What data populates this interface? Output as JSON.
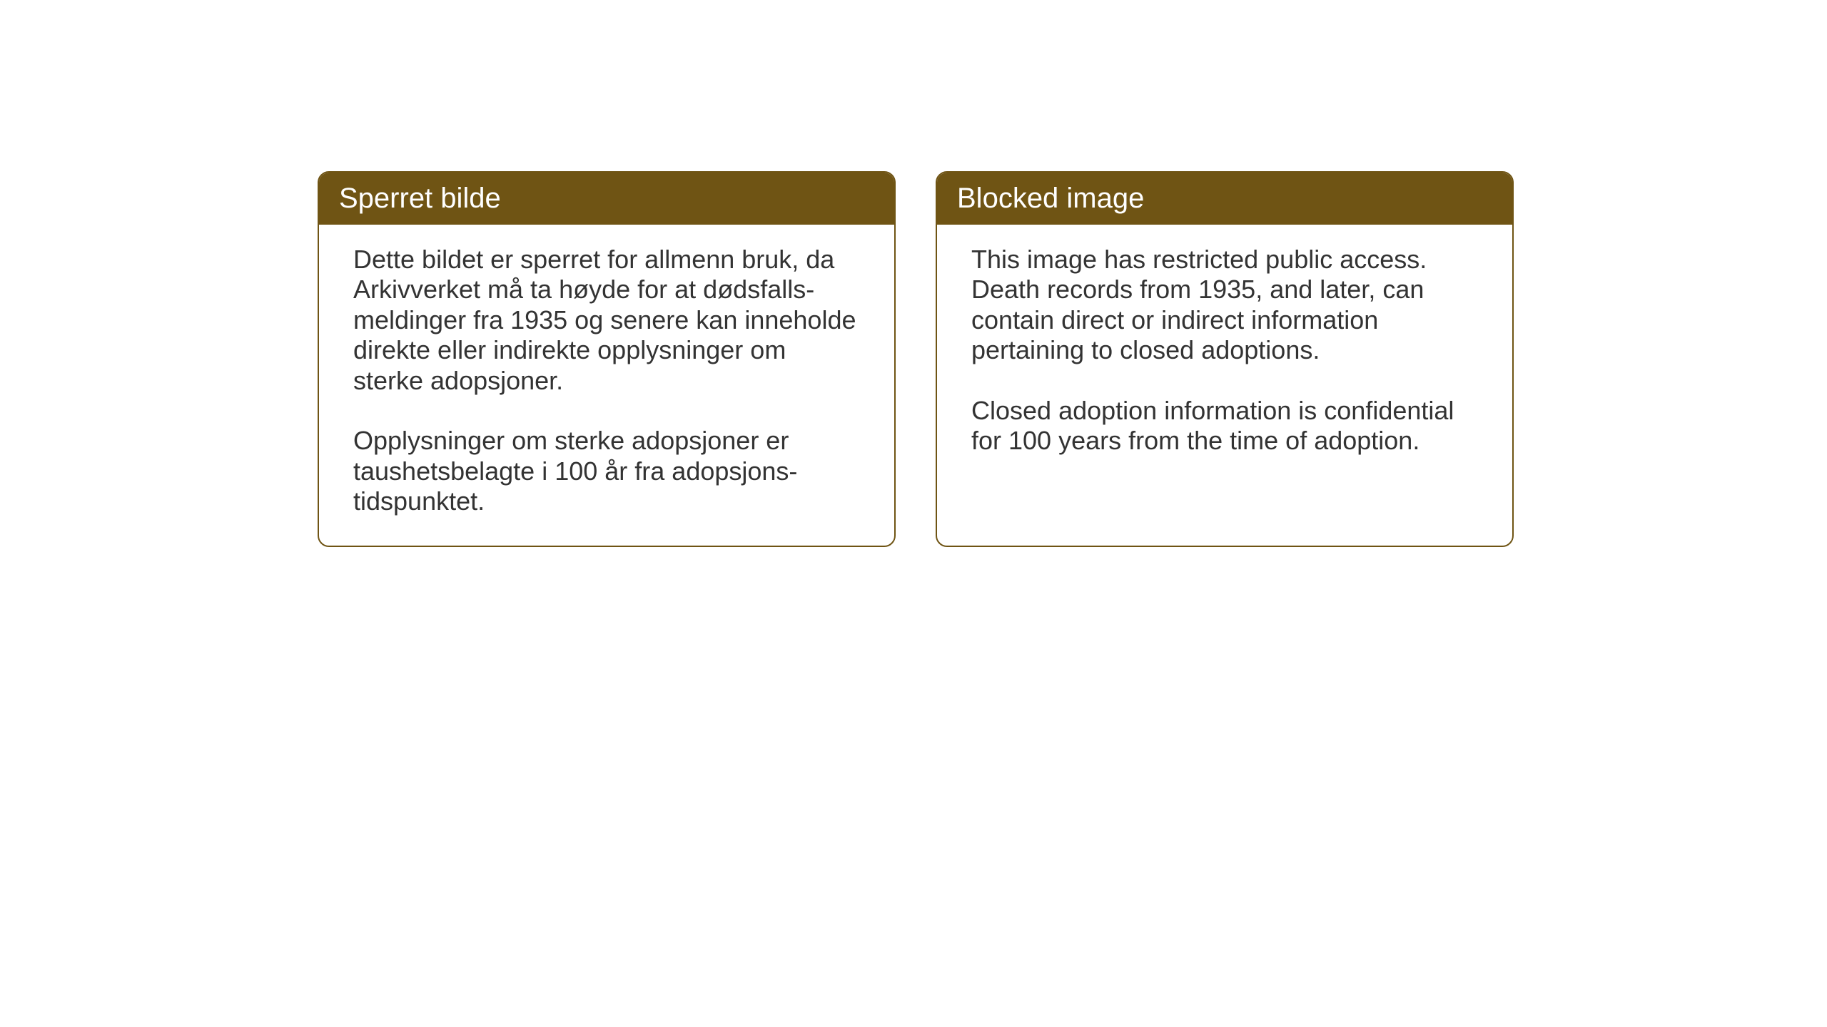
{
  "layout": {
    "background_color": "#ffffff",
    "card_border_color": "#6f5414",
    "card_border_radius": 16,
    "card_border_width": 2,
    "header_background_color": "#6f5414",
    "header_text_color": "#ffffff",
    "body_text_color": "#333333",
    "header_fontsize": 40,
    "body_fontsize": 36
  },
  "cards": {
    "norwegian": {
      "title": "Sperret bilde",
      "paragraph1": "Dette bildet er sperret for allmenn bruk, da Arkivverket må ta høyde for at dødsfalls-meldinger fra 1935 og senere kan inneholde direkte eller indirekte opplysninger om sterke adopsjoner.",
      "paragraph2": "Opplysninger om sterke adopsjoner er taushetsbelagte i 100 år fra adopsjons-tidspunktet."
    },
    "english": {
      "title": "Blocked image",
      "paragraph1": "This image has restricted public access. Death records from 1935, and later, can contain direct or indirect information pertaining to closed adoptions.",
      "paragraph2": "Closed adoption information is confidential for 100 years from the time of adoption."
    }
  }
}
